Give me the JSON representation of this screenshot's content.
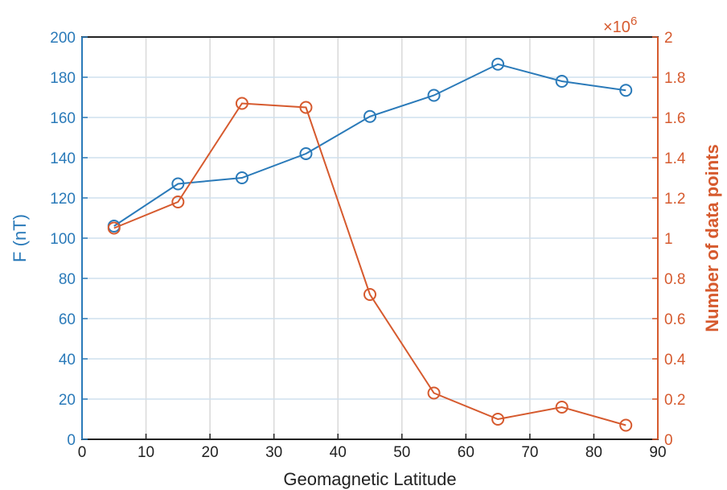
{
  "chart_data": {
    "type": "line",
    "xlabel": "Geomagnetic Latitude",
    "ylabel_left": "F (nT)",
    "ylabel_right": "Number of data points",
    "right_multiplier": "×10",
    "right_exponent": "6",
    "xlim": [
      0,
      90
    ],
    "ylim_left": [
      0,
      200
    ],
    "ylim_right": [
      0,
      2
    ],
    "x_ticks": [
      "0",
      "10",
      "20",
      "30",
      "40",
      "50",
      "60",
      "70",
      "80",
      "90"
    ],
    "y_left_ticks": [
      "0",
      "20",
      "40",
      "60",
      "80",
      "100",
      "120",
      "140",
      "160",
      "180",
      "200"
    ],
    "y_right_ticks": [
      "0",
      "0.2",
      "0.4",
      "0.6",
      "0.8",
      "1",
      "1.2",
      "1.4",
      "1.6",
      "1.8",
      "2"
    ],
    "grid": true,
    "series": [
      {
        "axis": "left",
        "color": "#2a7ab9",
        "x": [
          5,
          15,
          25,
          35,
          45,
          55,
          65,
          75,
          85
        ],
        "values": [
          106,
          127,
          130,
          142,
          160.5,
          171,
          186.5,
          178,
          173.5
        ]
      },
      {
        "axis": "right",
        "color": "#d65a2e",
        "x": [
          5,
          15,
          25,
          35,
          45,
          55,
          65,
          75,
          85
        ],
        "values": [
          1.05,
          1.18,
          1.67,
          1.65,
          0.72,
          0.23,
          0.1,
          0.16,
          0.07
        ]
      }
    ]
  }
}
